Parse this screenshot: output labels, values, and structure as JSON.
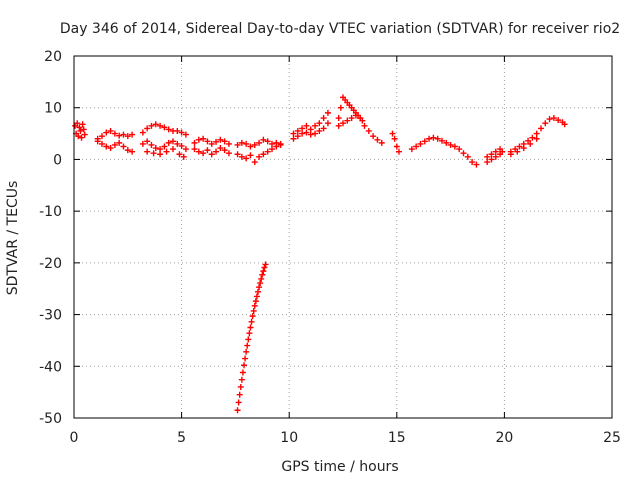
{
  "colors": {
    "series": "#ff0000",
    "axis": "#000000",
    "grid": "#a0a0a0",
    "text": "#222222"
  },
  "chart_data": {
    "type": "scatter",
    "title": "Day 346 of 2014, Sidereal Day-to-day VTEC variation (SDTVAR) for receiver rio2",
    "xlabel": "GPS time / hours",
    "ylabel": "SDTVAR / TECUs",
    "xlim": [
      0,
      25
    ],
    "ylim": [
      -50,
      20
    ],
    "xticks": [
      0,
      5,
      10,
      15,
      20,
      25
    ],
    "yticks": [
      -50,
      -40,
      -30,
      -20,
      -10,
      0,
      10,
      20
    ],
    "xtick_labels": [
      "0",
      "5",
      "10",
      "15",
      "20",
      "25"
    ],
    "ytick_labels": [
      "-50",
      "-40",
      "-30",
      "-20",
      "-10",
      "0",
      "10",
      "20"
    ],
    "grid": true,
    "marker": "+",
    "series": [
      {
        "name": "SDTVAR",
        "x": [
          0.05,
          0.1,
          0.15,
          0.2,
          0.25,
          0.3,
          0.35,
          0.4,
          0.45,
          0.5,
          1.1,
          1.3,
          1.5,
          1.7,
          1.9,
          2.1,
          2.3,
          2.5,
          2.7,
          1.1,
          1.3,
          1.5,
          1.7,
          1.9,
          2.1,
          2.3,
          2.5,
          2.7,
          3.2,
          3.4,
          3.6,
          3.8,
          4.0,
          4.2,
          4.4,
          4.6,
          4.8,
          5.0,
          5.2,
          3.2,
          3.4,
          3.6,
          3.8,
          4.0,
          4.2,
          4.4,
          4.6,
          4.8,
          5.0,
          5.2,
          3.4,
          3.7,
          4.0,
          4.3,
          4.6,
          4.9,
          5.1,
          5.6,
          5.8,
          6.0,
          6.2,
          6.4,
          6.6,
          6.8,
          7.0,
          7.2,
          5.6,
          5.8,
          6.0,
          6.2,
          6.4,
          6.6,
          6.8,
          7.0,
          7.2,
          7.6,
          7.8,
          8.0,
          8.2,
          8.4,
          8.6,
          8.8,
          9.0,
          9.2,
          9.4,
          9.6,
          7.6,
          7.8,
          8.0,
          8.2,
          8.4,
          8.6,
          8.8,
          9.0,
          9.2,
          9.4,
          9.6,
          10.2,
          10.4,
          10.6,
          10.8,
          11.0,
          11.2,
          11.4,
          11.6,
          11.8,
          10.2,
          10.4,
          10.6,
          10.8,
          11.0,
          11.2,
          11.4,
          11.6,
          11.8,
          12.3,
          12.4,
          12.5,
          12.6,
          12.7,
          12.8,
          12.9,
          13.0,
          13.1,
          13.2,
          13.3,
          13.4,
          13.5,
          13.7,
          13.9,
          14.1,
          14.3,
          12.3,
          12.5,
          12.7,
          12.9,
          13.1,
          13.3,
          14.8,
          14.9,
          15.0,
          15.1,
          15.7,
          15.9,
          16.1,
          16.3,
          16.5,
          16.7,
          16.9,
          17.1,
          17.3,
          17.5,
          17.7,
          17.9,
          18.1,
          18.3,
          18.5,
          18.7,
          19.2,
          19.4,
          19.6,
          19.8,
          19.9,
          19.2,
          19.4,
          19.6,
          19.8,
          20.3,
          20.5,
          20.7,
          20.9,
          21.1,
          21.3,
          21.5,
          21.7,
          21.9,
          22.1,
          22.3,
          22.5,
          22.7,
          22.8,
          20.3,
          20.6,
          20.9,
          21.2,
          21.5,
          7.6,
          7.65,
          7.7,
          7.75,
          7.8,
          7.85,
          7.9,
          7.95,
          8.0,
          8.05,
          8.1,
          8.15,
          8.2,
          8.25,
          8.3,
          8.35,
          8.4,
          8.45,
          8.5,
          8.55,
          8.6,
          8.65,
          8.7,
          8.75,
          8.8,
          8.85,
          8.9
        ],
        "y": [
          6.5,
          5.0,
          7.0,
          4.5,
          6.2,
          5.5,
          4.2,
          6.8,
          5.8,
          4.8,
          4.0,
          4.5,
          5.2,
          5.5,
          5.0,
          4.6,
          4.8,
          4.5,
          4.8,
          3.5,
          3.0,
          2.5,
          2.2,
          2.8,
          3.2,
          2.5,
          1.8,
          1.5,
          5.2,
          6.0,
          6.5,
          6.8,
          6.5,
          6.2,
          5.8,
          5.5,
          5.5,
          5.2,
          4.8,
          3.0,
          3.5,
          2.8,
          2.2,
          2.0,
          2.5,
          3.2,
          3.5,
          3.0,
          2.6,
          2.0,
          1.5,
          1.2,
          1.0,
          1.5,
          2.0,
          1.0,
          0.5,
          3.2,
          3.8,
          4.0,
          3.5,
          3.0,
          3.4,
          3.8,
          3.5,
          3.0,
          2.0,
          1.5,
          1.2,
          1.8,
          1.0,
          1.5,
          2.2,
          1.8,
          1.2,
          2.8,
          3.2,
          3.0,
          2.5,
          2.8,
          3.2,
          3.8,
          3.5,
          3.0,
          3.2,
          2.8,
          1.0,
          0.5,
          0.2,
          0.8,
          -0.5,
          0.5,
          1.0,
          1.5,
          2.0,
          2.5,
          3.0,
          5.0,
          5.5,
          6.0,
          6.5,
          5.8,
          6.5,
          7.0,
          8.0,
          9.0,
          4.0,
          4.5,
          5.0,
          5.2,
          4.8,
          5.0,
          5.5,
          6.0,
          7.0,
          8.0,
          10.0,
          12.0,
          11.5,
          11.0,
          10.5,
          10.0,
          9.5,
          9.0,
          8.5,
          8.0,
          7.5,
          6.5,
          5.5,
          4.5,
          3.8,
          3.2,
          6.5,
          7.0,
          7.5,
          8.0,
          8.5,
          8.0,
          5.0,
          4.0,
          2.5,
          1.5,
          2.0,
          2.5,
          3.0,
          3.5,
          4.0,
          4.2,
          4.0,
          3.6,
          3.2,
          2.8,
          2.5,
          2.0,
          1.2,
          0.5,
          -0.5,
          -1.0,
          0.5,
          1.0,
          1.5,
          2.0,
          1.5,
          -0.5,
          0.0,
          0.5,
          1.0,
          1.5,
          2.0,
          2.5,
          3.0,
          3.6,
          4.2,
          5.0,
          6.0,
          7.0,
          7.8,
          8.0,
          7.6,
          7.2,
          6.8,
          1.0,
          1.5,
          2.2,
          3.0,
          4.0,
          -48.5,
          -47.0,
          -45.5,
          -44.0,
          -42.6,
          -41.2,
          -39.8,
          -38.5,
          -37.2,
          -36.0,
          -34.8,
          -33.6,
          -32.5,
          -31.4,
          -30.3,
          -29.3,
          -28.3,
          -27.4,
          -26.5,
          -25.6,
          -24.7,
          -23.9,
          -23.1,
          -22.3,
          -21.6,
          -20.9,
          -20.3
        ]
      }
    ]
  }
}
